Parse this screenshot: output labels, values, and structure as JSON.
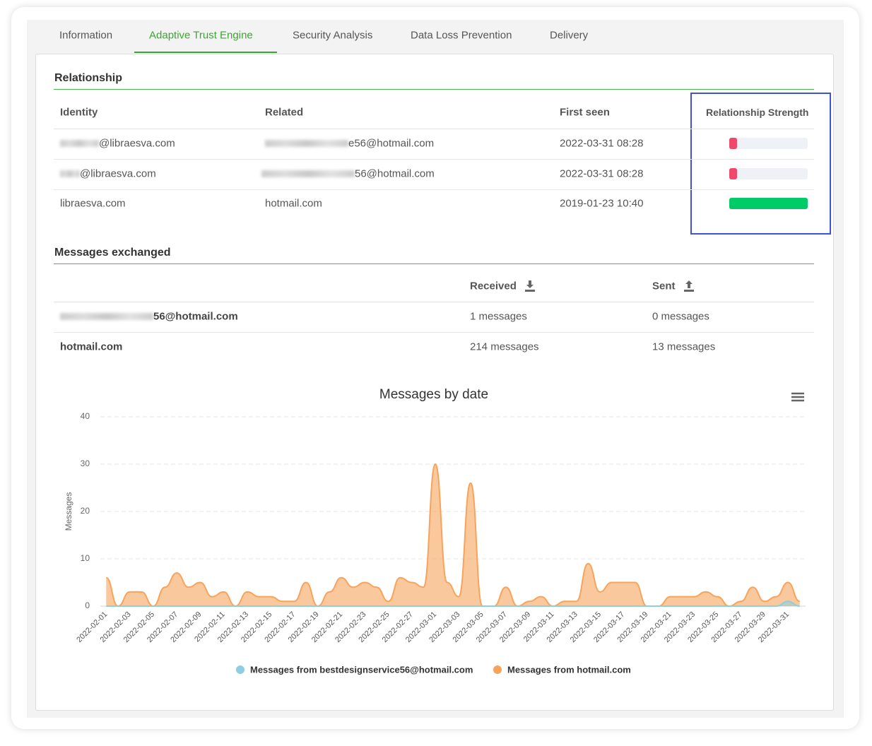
{
  "tabs": [
    "Information",
    "Adaptive Trust Engine",
    "Security Analysis",
    "Data Loss Prevention",
    "Delivery"
  ],
  "active_tab": 1,
  "relationship": {
    "title": "Relationship",
    "columns": [
      "Identity",
      "Related",
      "First seen",
      "Relationship Strength"
    ],
    "rows": [
      {
        "identity": "@libraesva.com",
        "related": "e56@hotmail.com",
        "first_seen": "2022-03-31 08:28",
        "strength": 10,
        "color": "#f0476a"
      },
      {
        "identity": "@libraesva.com",
        "related": "56@hotmail.com",
        "first_seen": "2022-03-31 08:28",
        "strength": 10,
        "color": "#f0476a"
      },
      {
        "identity": "libraesva.com",
        "related": "hotmail.com",
        "first_seen": "2019-01-23 10:40",
        "strength": 100,
        "color": "#00cc66"
      }
    ]
  },
  "messages": {
    "title": "Messages exchanged",
    "columns": [
      "Received",
      "Sent"
    ],
    "rows": [
      {
        "name": "56@hotmail.com",
        "received": "1 messages",
        "sent": "0 messages"
      },
      {
        "name": "hotmail.com",
        "received": "214 messages",
        "sent": "13 messages"
      }
    ]
  },
  "chart_data": {
    "type": "areaspline",
    "title": "Messages by date",
    "y_label": "Messages",
    "categories": [
      "2022-02-01",
      null,
      "2022-02-03",
      null,
      "2022-02-05",
      null,
      "2022-02-07",
      null,
      "2022-02-09",
      null,
      "2022-02-11",
      null,
      "2022-02-13",
      null,
      "2022-02-15",
      null,
      "2022-02-17",
      null,
      "2022-02-19",
      null,
      "2022-02-21",
      null,
      "2022-02-23",
      null,
      "2022-02-25",
      null,
      "2022-02-27",
      null,
      "2022-03-01",
      null,
      "2022-03-03",
      null,
      "2022-03-05",
      null,
      "2022-03-07",
      null,
      "2022-03-09",
      null,
      "2022-03-11",
      null,
      "2022-03-13",
      null,
      "2022-03-15",
      null,
      "2022-03-17",
      null,
      "2022-03-19",
      null,
      "2022-03-21",
      null,
      "2022-03-23",
      null,
      "2022-03-25",
      null,
      "2022-03-27",
      null,
      "2022-03-29",
      null,
      "2022-03-31",
      null
    ],
    "series": [
      {
        "name": "Messages from bestdesignservice56@hotmail.com",
        "color": "#8bcfe0",
        "values": [
          0,
          0,
          0,
          0,
          0,
          0,
          0,
          0,
          0,
          0,
          0,
          0,
          0,
          0,
          0,
          0,
          0,
          0,
          0,
          0,
          0,
          0,
          0,
          0,
          0,
          0,
          0,
          0,
          0,
          0,
          0,
          0,
          0,
          0,
          0,
          0,
          0,
          0,
          0,
          0,
          0,
          0,
          0,
          0,
          0,
          0,
          0,
          0,
          0,
          0,
          0,
          0,
          0,
          0,
          0,
          0,
          0,
          0,
          1,
          0
        ]
      },
      {
        "name": "Messages from hotmail.com",
        "color": "#f7a35c",
        "values": [
          6,
          0,
          3,
          3,
          0,
          4,
          7,
          4,
          5,
          2,
          3,
          0,
          3,
          2,
          2,
          1,
          1,
          5,
          0,
          3,
          6,
          4,
          5,
          4,
          1,
          6,
          5,
          4,
          30,
          5,
          2,
          26,
          0,
          0,
          4,
          0,
          1,
          2,
          0,
          1,
          1,
          9,
          3,
          5,
          5,
          5,
          0,
          0,
          2,
          2,
          2,
          3,
          2,
          0,
          1,
          4,
          1,
          2,
          5,
          1
        ]
      }
    ],
    "ylim": [
      0,
      40
    ],
    "yticks": [
      0,
      10,
      20,
      30,
      40
    ],
    "grid": true
  }
}
